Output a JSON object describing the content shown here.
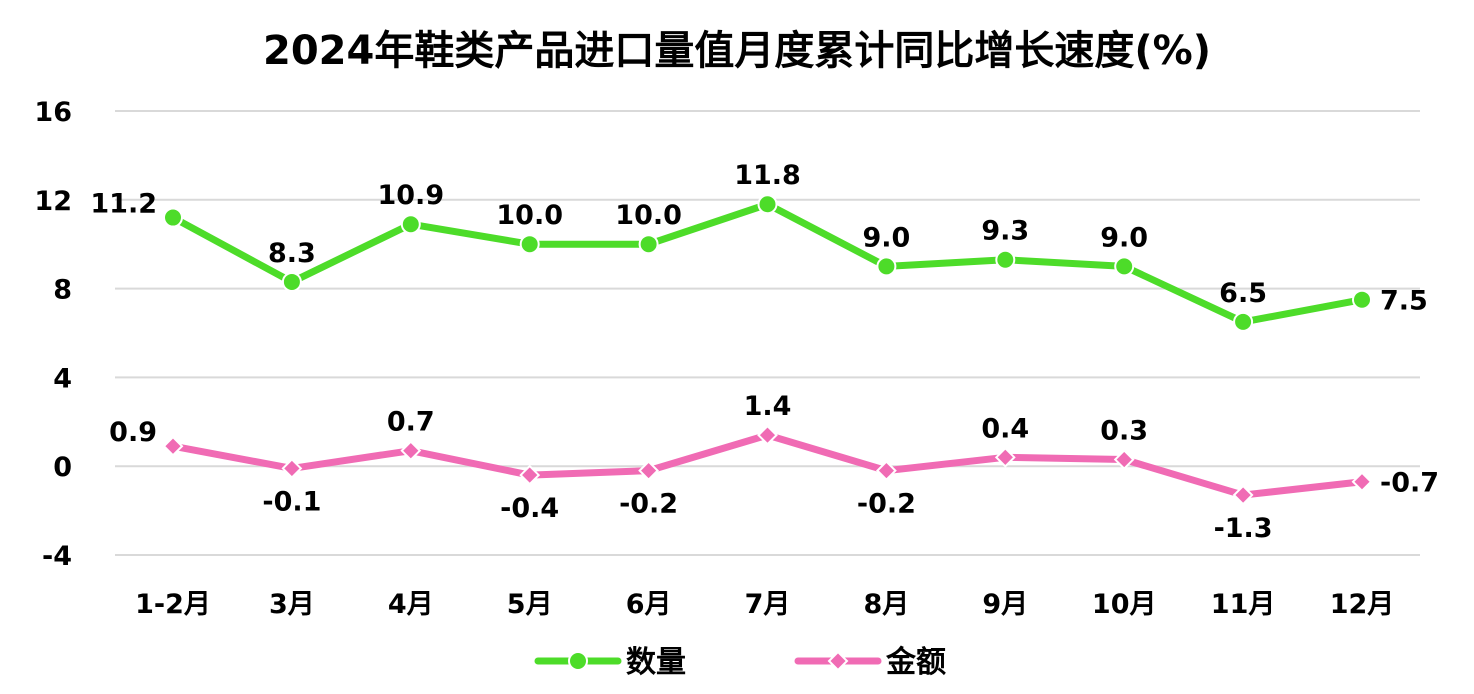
{
  "chart_data": {
    "type": "line",
    "title": "2024年鞋类产品进口量值月度累计同比增长速度(%)",
    "categories": [
      "1-2月",
      "3月",
      "4月",
      "5月",
      "6月",
      "7月",
      "8月",
      "9月",
      "10月",
      "11月",
      "12月"
    ],
    "ylim": [
      -4,
      16
    ],
    "yticks": [
      "16",
      "12",
      "8",
      "4",
      "0",
      "-4"
    ],
    "grid": true,
    "legend_position": "bottom",
    "series": [
      {
        "name": "数量",
        "color": "#4ddc29",
        "marker": "circle",
        "values": [
          11.2,
          8.3,
          10.9,
          10.0,
          10.0,
          11.8,
          9.0,
          9.3,
          9.0,
          6.5,
          7.5
        ],
        "labels": [
          "11.2",
          "8.3",
          "10.9",
          "10.0",
          "10.0",
          "11.8",
          "9.0",
          "9.3",
          "9.0",
          "6.5",
          "7.5"
        ]
      },
      {
        "name": "金额",
        "color": "#f06bb4",
        "marker": "diamond",
        "values": [
          0.9,
          -0.1,
          0.7,
          -0.4,
          -0.2,
          1.4,
          -0.2,
          0.4,
          0.3,
          -1.3,
          -0.7
        ],
        "labels": [
          "0.9",
          "-0.1",
          "0.7",
          "-0.4",
          "-0.2",
          "1.4",
          "-0.2",
          "0.4",
          "0.3",
          "-1.3",
          "-0.7"
        ]
      }
    ]
  }
}
